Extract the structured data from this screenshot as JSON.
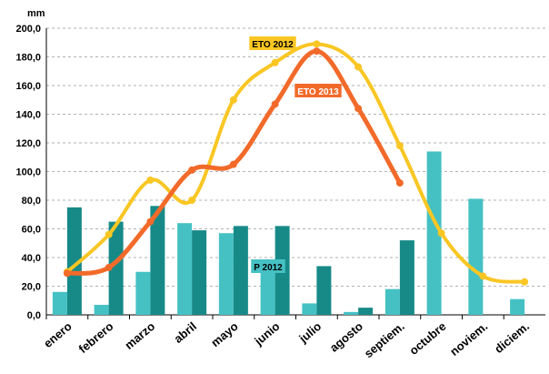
{
  "chart_data": {
    "type": "bar-line",
    "y_axis_label": "mm",
    "categories": [
      "enero",
      "febrero",
      "marzo",
      "abril",
      "mayo",
      "junio",
      "julio",
      "agosto",
      "septiem.",
      "octubre",
      "noviem.",
      "diciem."
    ],
    "ylim": [
      0,
      200
    ],
    "yticks": [
      {
        "value": 0,
        "label": "0,0"
      },
      {
        "value": 20,
        "label": "20,0"
      },
      {
        "value": 40,
        "label": "40,0"
      },
      {
        "value": 60,
        "label": "60,0"
      },
      {
        "value": 80,
        "label": "80,0"
      },
      {
        "value": 100,
        "label": "100,0"
      },
      {
        "value": 120,
        "label": "120,0"
      },
      {
        "value": 140,
        "label": "140,0"
      },
      {
        "value": 160,
        "label": "160,0"
      },
      {
        "value": 180,
        "label": "180,0"
      },
      {
        "value": 200,
        "label": "200,0"
      }
    ],
    "grid": true,
    "series": [
      {
        "name": "P 2012",
        "type": "bar",
        "color": "#45c1c4",
        "values": [
          16,
          7,
          30,
          64,
          57,
          30,
          8,
          2,
          18,
          114,
          81,
          11
        ]
      },
      {
        "type": "bar",
        "color": "#178a88",
        "values": [
          75,
          65,
          76,
          59,
          62,
          62,
          34,
          5,
          52,
          null,
          null,
          null
        ]
      },
      {
        "name": "ETO 2012",
        "type": "line",
        "color": "#f9c623",
        "values": [
          30,
          56,
          94,
          80,
          150,
          176,
          189,
          173,
          118,
          57,
          27,
          23
        ]
      },
      {
        "name": "ETO 2013",
        "type": "line",
        "color": "#f26a2a",
        "values": [
          29,
          33,
          65,
          101,
          105,
          147,
          184,
          144,
          92,
          null,
          null,
          null
        ]
      }
    ]
  }
}
